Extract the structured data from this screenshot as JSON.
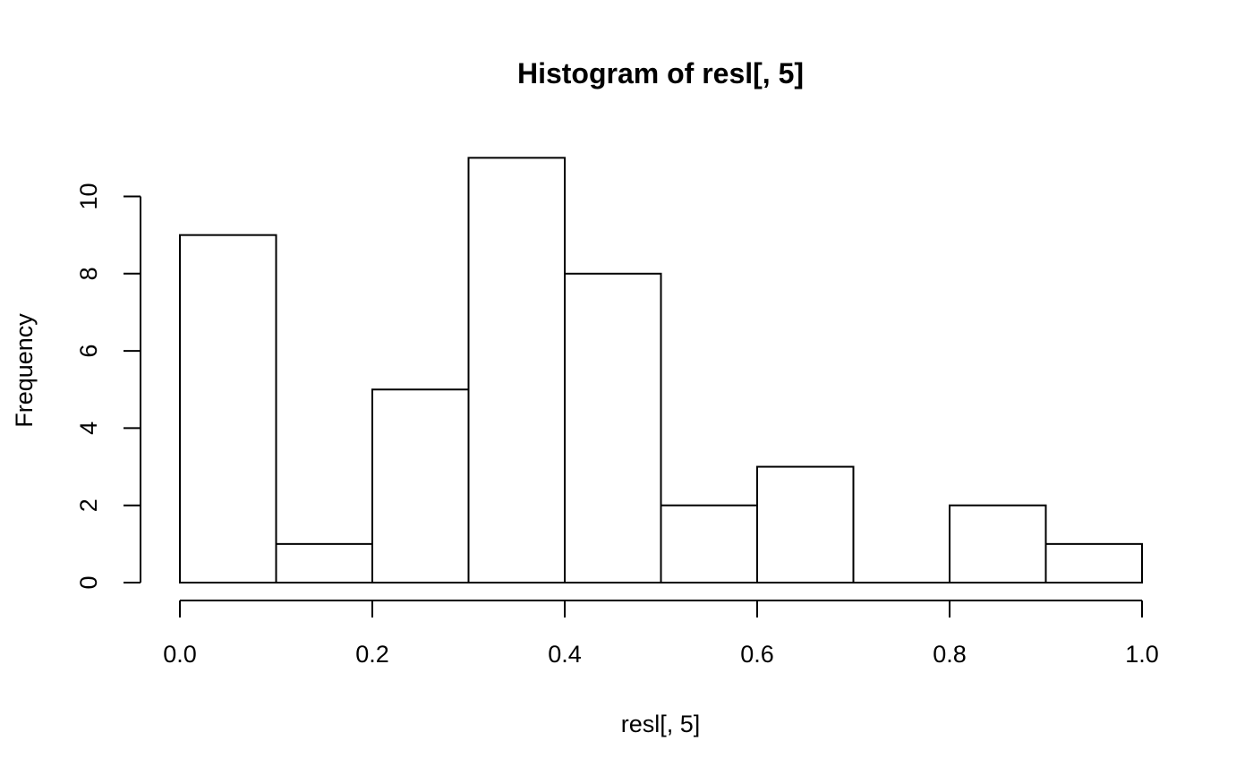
{
  "chart_data": {
    "type": "bar",
    "subtype": "histogram",
    "title": "Histogram of resl[, 5]",
    "xlabel": "resl[, 5]",
    "ylabel": "Frequency",
    "bins": [
      {
        "from": 0.0,
        "to": 0.1,
        "count": 9
      },
      {
        "from": 0.1,
        "to": 0.2,
        "count": 1
      },
      {
        "from": 0.2,
        "to": 0.3,
        "count": 5
      },
      {
        "from": 0.3,
        "to": 0.4,
        "count": 11
      },
      {
        "from": 0.4,
        "to": 0.5,
        "count": 8
      },
      {
        "from": 0.5,
        "to": 0.6,
        "count": 2
      },
      {
        "from": 0.6,
        "to": 0.7,
        "count": 3
      },
      {
        "from": 0.7,
        "to": 0.8,
        "count": 0
      },
      {
        "from": 0.8,
        "to": 0.9,
        "count": 2
      },
      {
        "from": 0.9,
        "to": 1.0,
        "count": 1
      }
    ],
    "xlim": [
      0,
      1
    ],
    "ylim": [
      0,
      11
    ],
    "x_ticks": [
      0.0,
      0.2,
      0.4,
      0.6,
      0.8,
      1.0
    ],
    "x_tick_labels": [
      "0.0",
      "0.2",
      "0.4",
      "0.6",
      "0.8",
      "1.0"
    ],
    "y_ticks": [
      0,
      2,
      4,
      6,
      8,
      10
    ],
    "y_tick_labels": [
      "0",
      "2",
      "4",
      "6",
      "8",
      "10"
    ],
    "grid": false,
    "legend": "none",
    "bar_fill": "#ffffff",
    "bar_stroke": "#000000"
  }
}
